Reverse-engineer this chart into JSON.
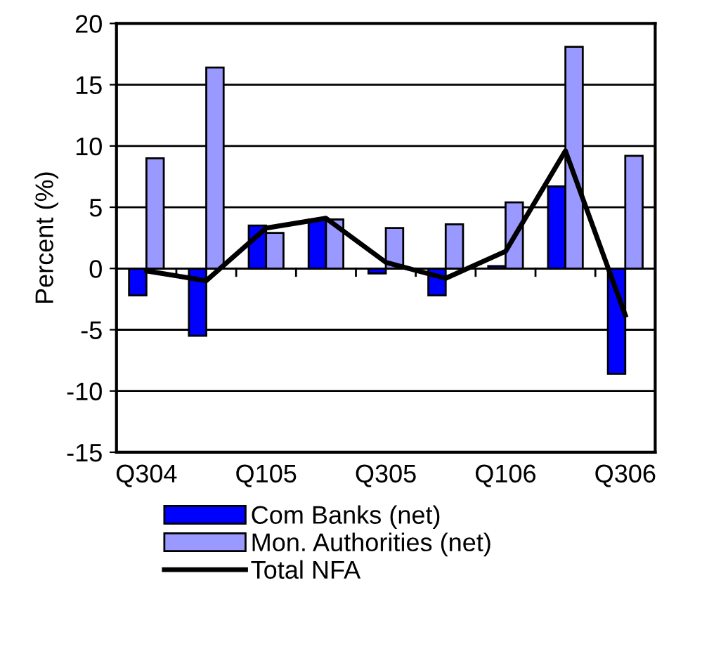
{
  "chart_data": {
    "type": "bar",
    "ylabel": "Percent (%)",
    "categories": [
      "Q304",
      null,
      "Q105",
      null,
      "Q305",
      null,
      "Q106",
      null,
      "Q306"
    ],
    "series": [
      {
        "name": "Com Banks (net)",
        "color": "#0000ff",
        "values": [
          -2.2,
          -5.5,
          3.5,
          4.0,
          -0.4,
          -2.2,
          0.2,
          6.7,
          -8.6
        ]
      },
      {
        "name": "Mon. Authorities (net)",
        "color": "#9999ff",
        "values": [
          9.0,
          16.4,
          2.9,
          4.0,
          3.3,
          3.6,
          5.4,
          18.1,
          9.2
        ]
      },
      {
        "name": "Total NFA",
        "type": "line",
        "color": "#000000",
        "values": [
          -0.2,
          -1.0,
          3.3,
          4.1,
          0.5,
          -0.8,
          1.4,
          9.6,
          -3.8
        ]
      }
    ],
    "ylim": [
      -15,
      20
    ],
    "yticks": [
      -15,
      -10,
      -5,
      0,
      5,
      10,
      15,
      20
    ],
    "grid": "y",
    "legend": "bottom",
    "marker": "none",
    "line_style": "solid"
  }
}
